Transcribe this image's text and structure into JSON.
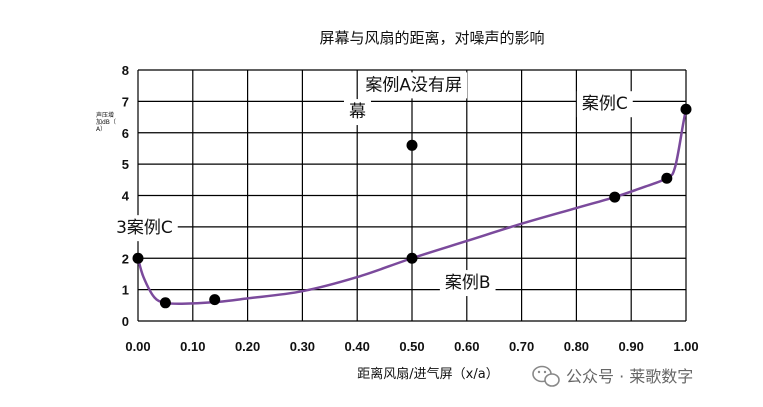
{
  "chart_data": {
    "type": "line",
    "title": "屏幕与风扇的距离，对噪声的影响",
    "xlabel": "距离风扇/进气屏（x/a）",
    "ylabel": [
      "声压增",
      "加dB（",
      "A）"
    ],
    "xlim": [
      0,
      1
    ],
    "ylim": [
      0,
      8
    ],
    "x_ticks": [
      "0.00",
      "0.10",
      "0.20",
      "0.30",
      "0.40",
      "0.50",
      "0.60",
      "0.70",
      "0.80",
      "0.90",
      "1.00"
    ],
    "y_ticks": [
      "0",
      "1",
      "2",
      "3",
      "4",
      "5",
      "6",
      "7",
      "8"
    ],
    "grid": true,
    "colors": {
      "curve": "#7b4a9c",
      "grid": "#000000",
      "points": "#000000"
    },
    "curve": {
      "x": [
        0.0,
        0.01,
        0.03,
        0.05,
        0.08,
        0.14,
        0.2,
        0.3,
        0.4,
        0.5,
        0.6,
        0.7,
        0.8,
        0.87,
        0.92,
        0.965,
        0.98,
        0.995,
        1.0
      ],
      "y": [
        2.0,
        1.4,
        0.75,
        0.58,
        0.55,
        0.6,
        0.72,
        0.95,
        1.4,
        2.0,
        2.55,
        3.1,
        3.6,
        3.95,
        4.25,
        4.55,
        4.9,
        6.3,
        6.75
      ]
    },
    "points": {
      "x": [
        0.0,
        0.05,
        0.14,
        0.5,
        0.5,
        0.87,
        0.965,
        1.0
      ],
      "y": [
        2.0,
        0.58,
        0.68,
        5.6,
        2.0,
        3.95,
        4.55,
        6.75
      ]
    },
    "annotations": [
      {
        "text": "案例A没有屏",
        "x": 0.415,
        "y": 7.35
      },
      {
        "text": "幕",
        "x": 0.385,
        "y": 6.5
      },
      {
        "text": "案例C",
        "x": 0.81,
        "y": 6.75
      },
      {
        "text": "3案例C",
        "x": -0.04,
        "y": 2.8
      },
      {
        "text": "案例B",
        "x": 0.56,
        "y": 1.05
      }
    ]
  },
  "watermark": "公众号 · 莱歌数字"
}
